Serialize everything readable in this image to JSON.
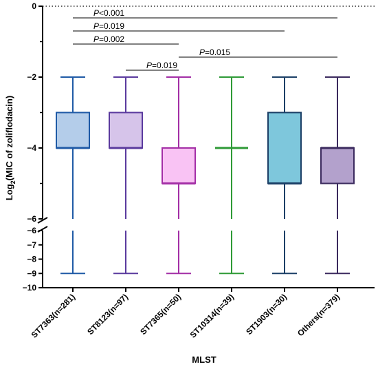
{
  "chart_data": {
    "type": "box",
    "ylabel_main": "Log",
    "ylabel_sub": "2",
    "ylabel_rest": "(MIC of zoliflodacin)",
    "xlabel": "MLST",
    "y_axis_break": {
      "upper_range": [
        -6,
        0
      ],
      "lower_range": [
        -10,
        -6
      ]
    },
    "upper_ticks": [
      {
        "value": 0,
        "label": "0"
      },
      {
        "value": -2,
        "label": "−2"
      },
      {
        "value": -4,
        "label": "−4"
      },
      {
        "value": -6,
        "label": "−6"
      }
    ],
    "lower_ticks": [
      {
        "value": -6,
        "label": "−6"
      },
      {
        "value": -7,
        "label": "−7"
      },
      {
        "value": -8,
        "label": "−8"
      },
      {
        "value": -9,
        "label": "−9"
      },
      {
        "value": -10,
        "label": "−10"
      }
    ],
    "reference_line": {
      "value": 0,
      "style": "dotted"
    },
    "categories": [
      {
        "label": "ST7363(n=281)",
        "min": -9,
        "q1": -4,
        "median": -4,
        "q3": -3,
        "max": -2,
        "stroke": "#1f5aa6",
        "fill": "#b4cdea"
      },
      {
        "label": "ST8123(n=97)",
        "min": -9,
        "q1": -4,
        "median": -4,
        "q3": -3,
        "max": -2,
        "stroke": "#5a3a9e",
        "fill": "#d6c4ea"
      },
      {
        "label": "ST7365(n=50)",
        "min": -9,
        "q1": -5,
        "median": -5,
        "q3": -4,
        "max": -2,
        "stroke": "#a32ea6",
        "fill": "#f9c3f4"
      },
      {
        "label": "ST10314(n=39)",
        "min": -9,
        "q1": -4,
        "median": -4,
        "q3": -4,
        "max": -2,
        "stroke": "#2e9a36",
        "fill": "#2e9a36"
      },
      {
        "label": "ST1903(n=30)",
        "min": -9,
        "q1": -5,
        "median": -5,
        "q3": -3,
        "max": -2,
        "stroke": "#1b3f66",
        "fill": "#7ec7dc"
      },
      {
        "label": "Others(n=379)",
        "min": -9,
        "q1": -5,
        "median": -4,
        "q3": -4,
        "max": -2,
        "stroke": "#3b2a5e",
        "fill": "#b3a1cc"
      }
    ],
    "comparisons": [
      {
        "from": 0,
        "to": 5,
        "prefix": "P",
        "text": "<0.001"
      },
      {
        "from": 0,
        "to": 4,
        "prefix": "P",
        "text": "=0.019"
      },
      {
        "from": 0,
        "to": 2,
        "prefix": "P",
        "text": "=0.002"
      },
      {
        "from": 2,
        "to": 5,
        "prefix": "P",
        "text": "=0.015"
      },
      {
        "from": 1,
        "to": 2,
        "prefix": "P",
        "text": "=0.019"
      }
    ]
  }
}
